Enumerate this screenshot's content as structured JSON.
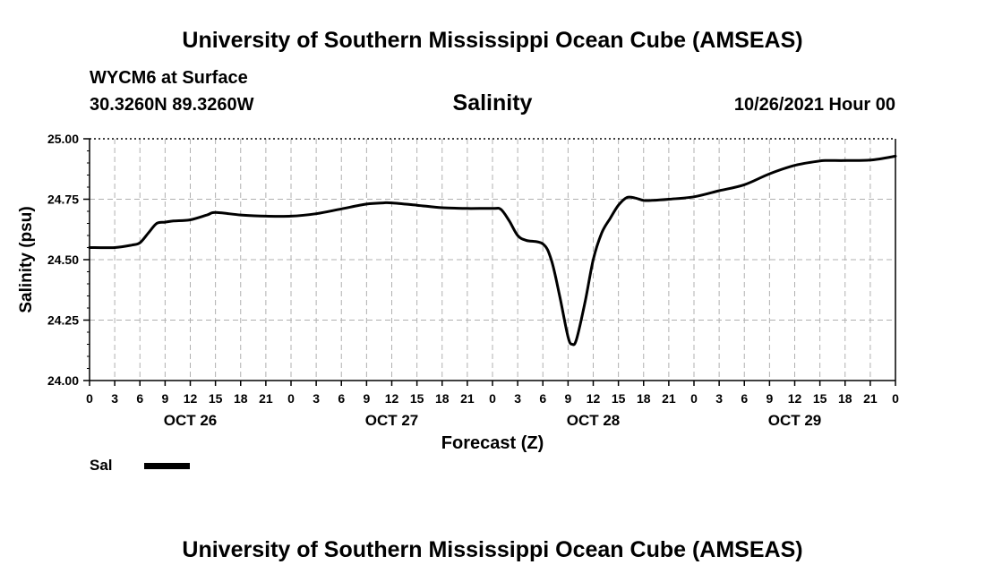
{
  "header": {
    "top_title": "University of Southern Mississippi Ocean Cube (AMSEAS)",
    "station": "WYCM6 at Surface",
    "coords": "30.3260N  89.3260W",
    "chart_name": "Salinity",
    "datetime": "10/26/2021 Hour 00",
    "bottom_title": "University of Southern Mississippi Ocean Cube (AMSEAS)"
  },
  "legend": {
    "label": "Sal"
  },
  "chart_data": {
    "type": "line",
    "title": "Salinity",
    "xlabel": "Forecast (Z)",
    "ylabel": "Salinity (psu)",
    "xlim": [
      0,
      96
    ],
    "ylim": [
      24.0,
      25.0
    ],
    "y_ticks": [
      "24.00",
      "24.25",
      "24.50",
      "24.75",
      "25.00"
    ],
    "y_tick_values": [
      24.0,
      24.25,
      24.5,
      24.75,
      25.0
    ],
    "x_tick_labels": [
      "0",
      "3",
      "6",
      "9",
      "12",
      "15",
      "18",
      "21",
      "0",
      "3",
      "6",
      "9",
      "12",
      "15",
      "18",
      "21",
      "0",
      "3",
      "6",
      "9",
      "12",
      "15",
      "18",
      "21",
      "0",
      "3",
      "6",
      "9",
      "12",
      "15",
      "18",
      "21",
      "0"
    ],
    "day_labels": [
      {
        "text": "OCT 26",
        "hour": 12
      },
      {
        "text": "OCT 27",
        "hour": 36
      },
      {
        "text": "OCT 28",
        "hour": 60
      },
      {
        "text": "OCT 29",
        "hour": 84
      }
    ],
    "grid": true,
    "series": [
      {
        "name": "Sal",
        "color": "#000000",
        "x": [
          0,
          3,
          5,
          6,
          7,
          8,
          9,
          10,
          12,
          14,
          15,
          18,
          21,
          24,
          27,
          30,
          33,
          35,
          36,
          39,
          42,
          45,
          48,
          49,
          50,
          51,
          52,
          54,
          55,
          56,
          57,
          57.5,
          58,
          59,
          60,
          61,
          62,
          63,
          64,
          65,
          66,
          67,
          69,
          72,
          75,
          78,
          81,
          84,
          87,
          88,
          90,
          93,
          96
        ],
        "values": [
          24.55,
          24.55,
          24.56,
          24.57,
          24.61,
          24.65,
          24.655,
          24.66,
          24.665,
          24.685,
          24.695,
          24.685,
          24.68,
          24.68,
          24.69,
          24.71,
          24.73,
          24.735,
          24.735,
          24.725,
          24.715,
          24.712,
          24.712,
          24.708,
          24.66,
          24.6,
          24.58,
          24.565,
          24.5,
          24.35,
          24.18,
          24.15,
          24.17,
          24.32,
          24.5,
          24.61,
          24.67,
          24.725,
          24.757,
          24.755,
          24.745,
          24.745,
          24.75,
          24.76,
          24.785,
          24.81,
          24.855,
          24.89,
          24.908,
          24.91,
          24.91,
          24.912,
          24.928
        ]
      }
    ]
  }
}
